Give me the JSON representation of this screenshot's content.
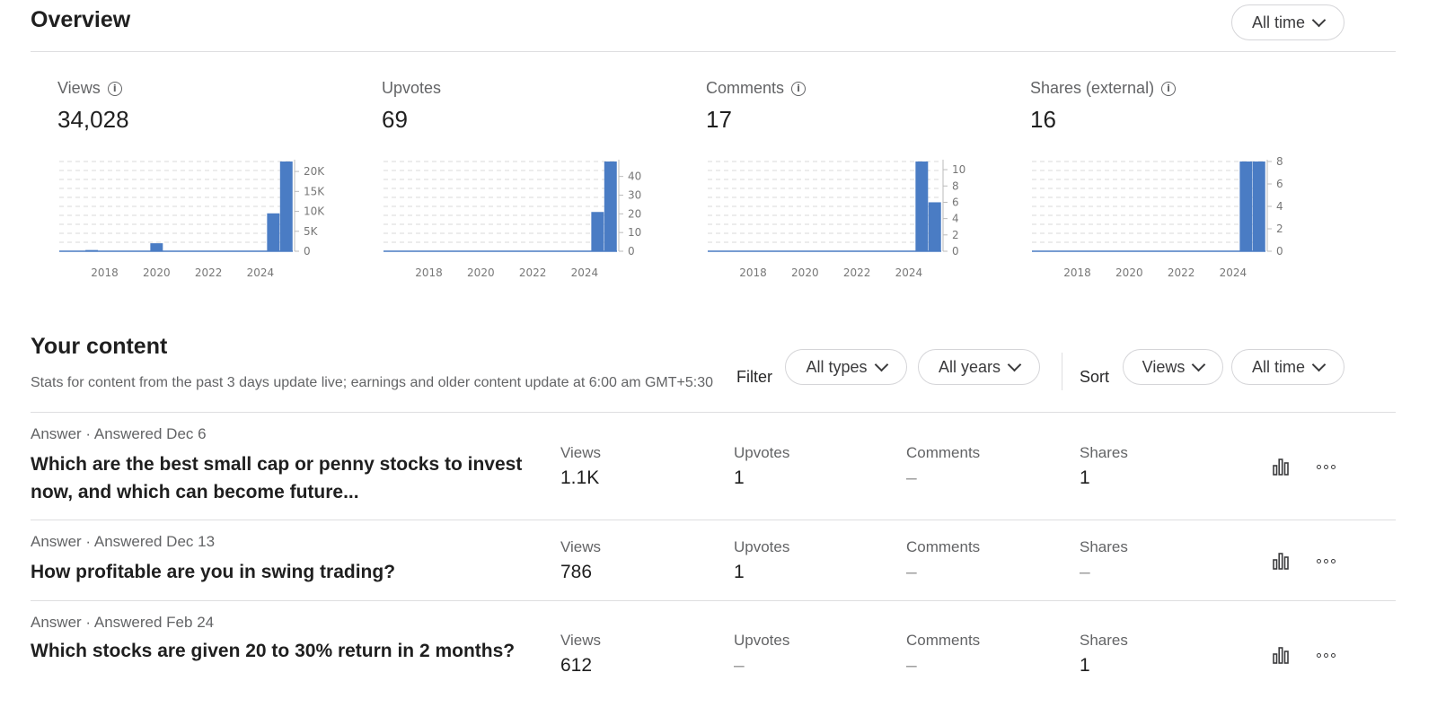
{
  "overview": {
    "title": "Overview",
    "time_filter": "All time"
  },
  "stats": [
    {
      "label": "Views",
      "value": "34,028",
      "info": true
    },
    {
      "label": "Upvotes",
      "value": "69",
      "info": false
    },
    {
      "label": "Comments",
      "value": "17",
      "info": true
    },
    {
      "label": "Shares (external)",
      "value": "16",
      "info": true
    }
  ],
  "chart_data": [
    {
      "type": "bar",
      "x": [
        2016.5,
        2017,
        2017.5,
        2018,
        2018.5,
        2019,
        2019.5,
        2020,
        2020.5,
        2021,
        2021.5,
        2022,
        2022.5,
        2023,
        2023.5,
        2024,
        2024.5,
        2025
      ],
      "values": [
        0,
        0,
        300,
        0,
        0,
        0,
        0,
        2000,
        0,
        0,
        0,
        0,
        0,
        0,
        0,
        0,
        9500,
        22500
      ],
      "xticks": [
        "2018",
        "2020",
        "2022",
        "2024"
      ],
      "yticks": [
        "0",
        "5K",
        "10K",
        "15K",
        "20K"
      ],
      "ylim": [
        0,
        22500
      ]
    },
    {
      "type": "bar",
      "x": [
        2016.5,
        2017,
        2017.5,
        2018,
        2018.5,
        2019,
        2019.5,
        2020,
        2020.5,
        2021,
        2021.5,
        2022,
        2022.5,
        2023,
        2023.5,
        2024,
        2024.5,
        2025
      ],
      "values": [
        0,
        0,
        0,
        0,
        0,
        0,
        0,
        0,
        0,
        0,
        0,
        0,
        0,
        0,
        0,
        0,
        21,
        48
      ],
      "xticks": [
        "2018",
        "2020",
        "2022",
        "2024"
      ],
      "yticks": [
        "0",
        "10",
        "20",
        "30",
        "40"
      ],
      "ylim": [
        0,
        48
      ]
    },
    {
      "type": "bar",
      "x": [
        2016.5,
        2017,
        2017.5,
        2018,
        2018.5,
        2019,
        2019.5,
        2020,
        2020.5,
        2021,
        2021.5,
        2022,
        2022.5,
        2023,
        2023.5,
        2024,
        2024.5,
        2025
      ],
      "values": [
        0,
        0,
        0,
        0,
        0,
        0,
        0,
        0,
        0,
        0,
        0,
        0,
        0,
        0,
        0,
        0,
        11,
        6
      ],
      "xticks": [
        "2018",
        "2020",
        "2022",
        "2024"
      ],
      "yticks": [
        "0",
        "2",
        "4",
        "6",
        "8",
        "10"
      ],
      "ylim": [
        0,
        11
      ]
    },
    {
      "type": "bar",
      "x": [
        2016.5,
        2017,
        2017.5,
        2018,
        2018.5,
        2019,
        2019.5,
        2020,
        2020.5,
        2021,
        2021.5,
        2022,
        2022.5,
        2023,
        2023.5,
        2024,
        2024.5,
        2025
      ],
      "values": [
        0,
        0,
        0,
        0,
        0,
        0,
        0,
        0,
        0,
        0,
        0,
        0,
        0,
        0,
        0,
        0,
        8,
        8
      ],
      "xticks": [
        "2018",
        "2020",
        "2022",
        "2024"
      ],
      "yticks": [
        "0",
        "2",
        "4",
        "6",
        "8"
      ],
      "ylim": [
        0,
        8
      ]
    }
  ],
  "content": {
    "title": "Your content",
    "description": "Stats for content from the past 3 days update live; earnings and older content update at 6:00 am GMT+5:30",
    "filter_label": "Filter",
    "filter_types": "All types",
    "filter_years": "All years",
    "sort_label": "Sort",
    "sort_by": "Views",
    "sort_time": "All time"
  },
  "columns": {
    "views": "Views",
    "upvotes": "Upvotes",
    "comments": "Comments",
    "shares": "Shares"
  },
  "rows": [
    {
      "meta": "Answer · Answered Dec 6",
      "title": "Which are the best small cap or penny stocks to invest now, and which can become future...",
      "views": "1.1K",
      "upvotes": "1",
      "comments": "–",
      "shares": "1"
    },
    {
      "meta": "Answer · Answered Dec 13",
      "title": "How profitable are you in swing trading?",
      "views": "786",
      "upvotes": "1",
      "comments": "–",
      "shares": "–"
    },
    {
      "meta": "Answer · Answered Feb 24",
      "title": "Which stocks are given 20 to 30% return in 2 months?",
      "views": "612",
      "upvotes": "–",
      "comments": "–",
      "shares": "1"
    }
  ],
  "colors": {
    "bar": "#4a7cc4",
    "grid": "#d9d9d9",
    "baseline": "#4a7cc4"
  },
  "icons": {
    "info": "info-icon",
    "chevron": "chevron-down-icon",
    "stats": "bar-chart-icon",
    "more": "more-horizontal-icon"
  }
}
